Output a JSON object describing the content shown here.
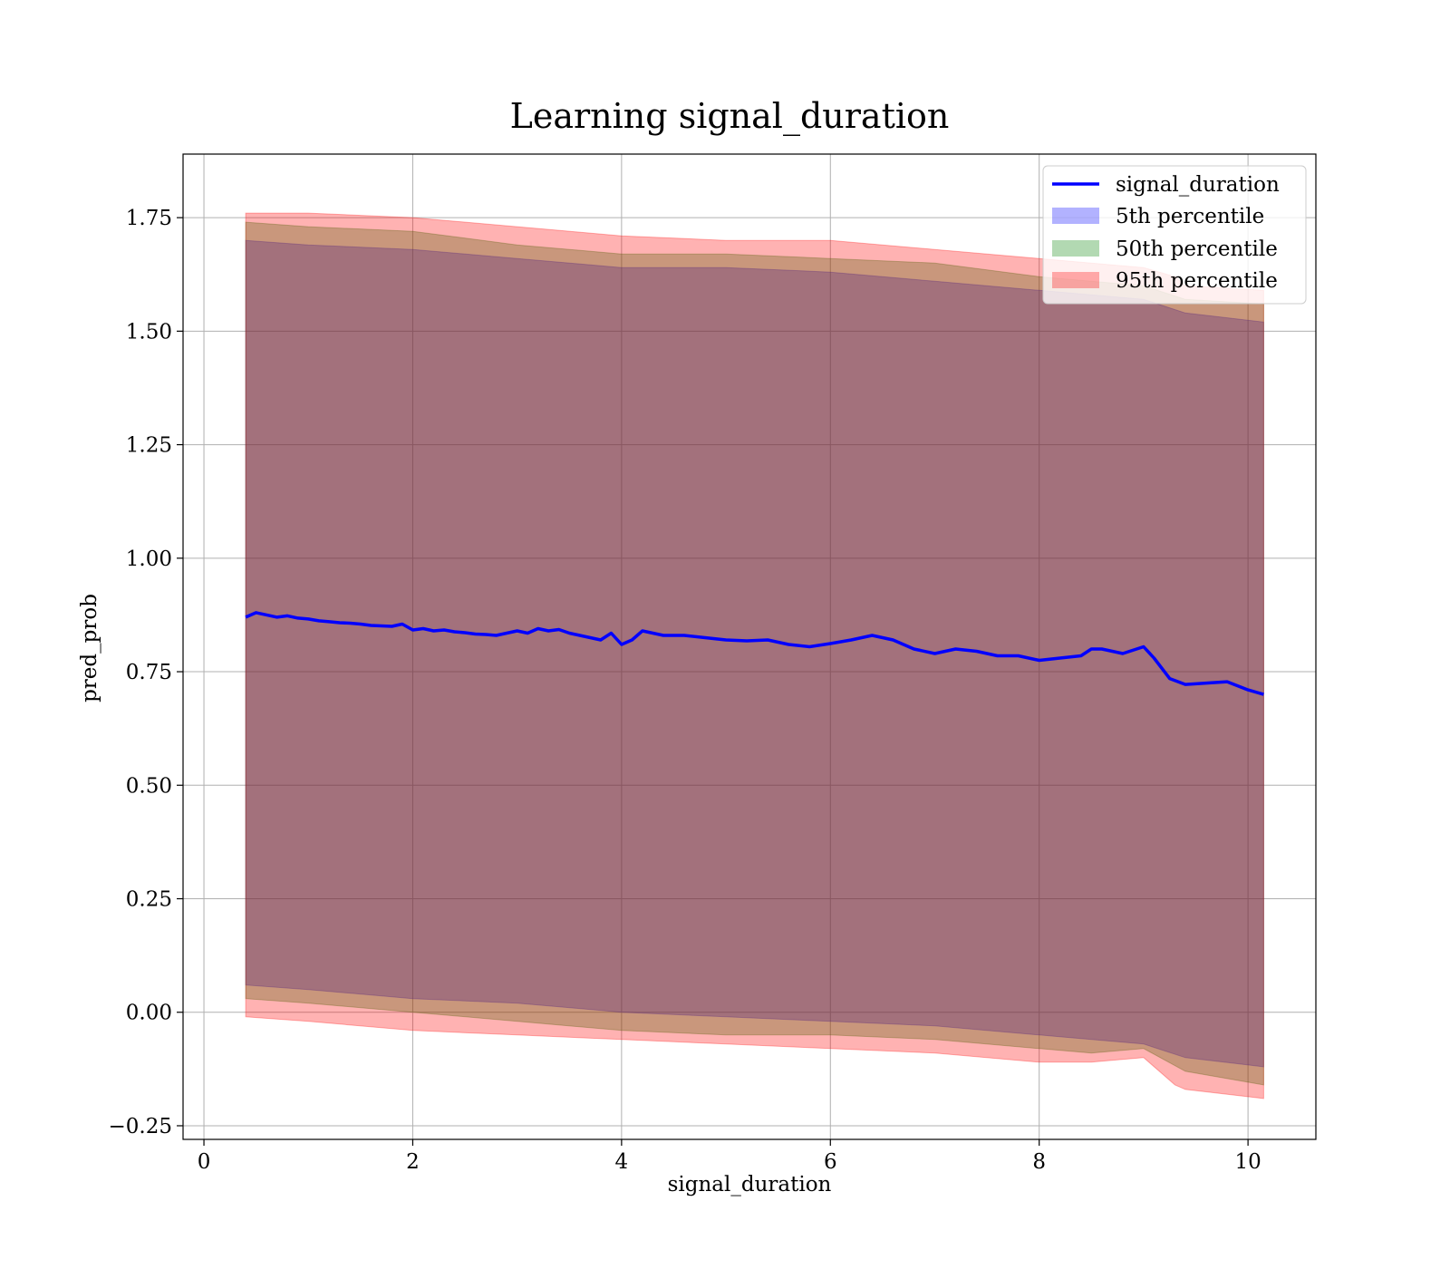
{
  "chart_data": {
    "type": "area",
    "title": "Learning signal_duration",
    "xlabel": "signal_duration",
    "ylabel": "pred_prob",
    "xlim": [
      -0.2,
      10.65
    ],
    "ylim": [
      -0.28,
      1.89
    ],
    "xticks": [
      0,
      2,
      4,
      6,
      8,
      10
    ],
    "xtick_labels": [
      "0",
      "2",
      "4",
      "6",
      "8",
      "10"
    ],
    "yticks": [
      -0.25,
      0,
      0.25,
      0.5,
      0.75,
      1.0,
      1.25,
      1.5,
      1.75
    ],
    "ytick_labels": [
      "−0.25",
      "0.00",
      "0.25",
      "0.50",
      "0.75",
      "1.00",
      "1.25",
      "1.50",
      "1.75"
    ],
    "grid": true,
    "legend_position": "top-right",
    "line": {
      "name": "signal_duration",
      "color": "#0000ff",
      "x": [
        0.4,
        0.5,
        0.6,
        0.7,
        0.8,
        0.9,
        1.0,
        1.1,
        1.2,
        1.3,
        1.4,
        1.5,
        1.6,
        1.7,
        1.8,
        1.9,
        2.0,
        2.1,
        2.2,
        2.3,
        2.4,
        2.5,
        2.6,
        2.7,
        2.8,
        2.9,
        3.0,
        3.1,
        3.2,
        3.3,
        3.4,
        3.5,
        3.6,
        3.7,
        3.8,
        3.9,
        4.0,
        4.1,
        4.2,
        4.4,
        4.6,
        4.8,
        5.0,
        5.2,
        5.4,
        5.6,
        5.8,
        6.0,
        6.2,
        6.4,
        6.6,
        6.8,
        7.0,
        7.2,
        7.4,
        7.6,
        7.8,
        8.0,
        8.2,
        8.4,
        8.5,
        8.6,
        8.8,
        9.0,
        9.1,
        9.25,
        9.4,
        9.6,
        9.8,
        10.0,
        10.15
      ],
      "y": [
        0.87,
        0.88,
        0.875,
        0.87,
        0.873,
        0.868,
        0.866,
        0.862,
        0.86,
        0.858,
        0.857,
        0.855,
        0.852,
        0.851,
        0.85,
        0.855,
        0.842,
        0.845,
        0.84,
        0.842,
        0.838,
        0.836,
        0.833,
        0.832,
        0.83,
        0.835,
        0.84,
        0.835,
        0.845,
        0.84,
        0.843,
        0.835,
        0.83,
        0.825,
        0.82,
        0.835,
        0.81,
        0.82,
        0.84,
        0.83,
        0.83,
        0.825,
        0.82,
        0.818,
        0.82,
        0.81,
        0.805,
        0.812,
        0.82,
        0.83,
        0.82,
        0.8,
        0.79,
        0.8,
        0.795,
        0.785,
        0.785,
        0.775,
        0.78,
        0.785,
        0.8,
        0.8,
        0.79,
        0.805,
        0.78,
        0.735,
        0.722,
        0.725,
        0.728,
        0.71,
        0.7
      ]
    },
    "bands": [
      {
        "name": "5th percentile",
        "color": "#0000ff",
        "x": [
          0.4,
          1.0,
          2.0,
          3.0,
          4.0,
          5.0,
          6.0,
          7.0,
          8.0,
          8.5,
          9.0,
          9.4,
          10.15
        ],
        "lower": [
          0.06,
          0.05,
          0.03,
          0.02,
          0.0,
          -0.01,
          -0.02,
          -0.03,
          -0.05,
          -0.06,
          -0.07,
          -0.1,
          -0.12
        ],
        "upper": [
          1.7,
          1.69,
          1.68,
          1.66,
          1.64,
          1.64,
          1.63,
          1.61,
          1.59,
          1.58,
          1.57,
          1.54,
          1.52
        ]
      },
      {
        "name": "50th percentile",
        "color": "#008000",
        "x": [
          0.4,
          1.0,
          2.0,
          3.0,
          4.0,
          5.0,
          6.0,
          7.0,
          8.0,
          8.5,
          9.0,
          9.4,
          10.15
        ],
        "lower": [
          0.03,
          0.02,
          0.0,
          -0.02,
          -0.04,
          -0.05,
          -0.05,
          -0.06,
          -0.08,
          -0.09,
          -0.08,
          -0.13,
          -0.16
        ],
        "upper": [
          1.74,
          1.73,
          1.72,
          1.69,
          1.67,
          1.67,
          1.66,
          1.65,
          1.62,
          1.61,
          1.6,
          1.57,
          1.56
        ]
      },
      {
        "name": "95th percentile",
        "color": "#ff0000",
        "x": [
          0.4,
          1.0,
          2.0,
          3.0,
          4.0,
          5.0,
          6.0,
          7.0,
          8.0,
          8.5,
          9.0,
          9.3,
          9.4,
          10.15
        ],
        "lower": [
          -0.01,
          -0.02,
          -0.04,
          -0.05,
          -0.06,
          -0.07,
          -0.08,
          -0.09,
          -0.11,
          -0.11,
          -0.1,
          -0.16,
          -0.17,
          -0.19
        ],
        "upper": [
          1.76,
          1.76,
          1.75,
          1.73,
          1.71,
          1.7,
          1.7,
          1.68,
          1.66,
          1.65,
          1.64,
          1.62,
          1.6,
          1.59
        ]
      }
    ]
  }
}
